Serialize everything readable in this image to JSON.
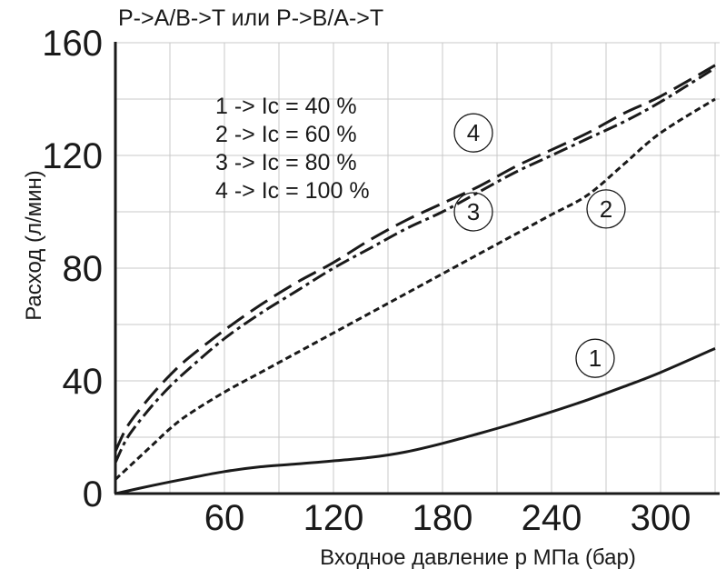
{
  "chart_data": {
    "type": "line",
    "title": "P->A/B->T или P->B/A->T",
    "xlabel": "Входное давление p МПа (бар)",
    "ylabel": "Расход (л/мин)",
    "xlim": [
      0,
      330
    ],
    "ylim": [
      0,
      160
    ],
    "x_ticks": [
      "60",
      "120",
      "180",
      "240",
      "300"
    ],
    "y_ticks": [
      "0",
      "40",
      "80",
      "120",
      "160"
    ],
    "grid": true,
    "legend": [
      "1 -> Ic = 40 %",
      "2 -> Ic = 60 %",
      "3 -> Ic = 80 %",
      "4 -> Ic = 100 %"
    ],
    "series": [
      {
        "name": "1",
        "label": "1",
        "label_pos": [
          264,
          48
        ],
        "x": [
          0,
          20,
          40,
          60,
          80,
          100,
          120,
          140,
          160,
          180,
          200,
          220,
          240,
          260,
          280,
          300,
          330
        ],
        "y": [
          0,
          2.8,
          5.4,
          7.8,
          9.5,
          10.5,
          11.6,
          12.8,
          14.8,
          17.8,
          21.3,
          25,
          29,
          33.3,
          38,
          43,
          51.5
        ]
      },
      {
        "name": "2",
        "label": "2",
        "label_pos": [
          270,
          101
        ],
        "x": [
          0,
          10,
          20,
          30,
          40,
          60,
          80,
          100,
          120,
          140,
          160,
          180,
          200,
          220,
          240,
          260,
          280,
          300,
          330
        ],
        "y": [
          5,
          11,
          17,
          23,
          28,
          36,
          43,
          50,
          57,
          64,
          71,
          78,
          85,
          92,
          99,
          106,
          117,
          128,
          140
        ]
      },
      {
        "name": "3",
        "label": "3",
        "label_pos": [
          197,
          100
        ],
        "x": [
          0,
          5,
          10,
          20,
          30,
          40,
          60,
          80,
          100,
          120,
          140,
          160,
          180,
          200,
          220,
          240,
          260,
          280,
          300,
          330
        ],
        "y": [
          11,
          18,
          23,
          31,
          38,
          44,
          55,
          64,
          72,
          80,
          87,
          94,
          100,
          107,
          114,
          120,
          126,
          132,
          139,
          151
        ]
      },
      {
        "name": "4",
        "label": "4",
        "label_pos": [
          197,
          128
        ],
        "x": [
          0,
          5,
          10,
          20,
          30,
          40,
          60,
          80,
          100,
          120,
          140,
          160,
          180,
          200,
          220,
          240,
          260,
          280,
          300,
          330
        ],
        "y": [
          15,
          22,
          27,
          35,
          42,
          48,
          58,
          67,
          75,
          82,
          90,
          97,
          103,
          109,
          116,
          122,
          128,
          135,
          141,
          152
        ]
      }
    ]
  }
}
